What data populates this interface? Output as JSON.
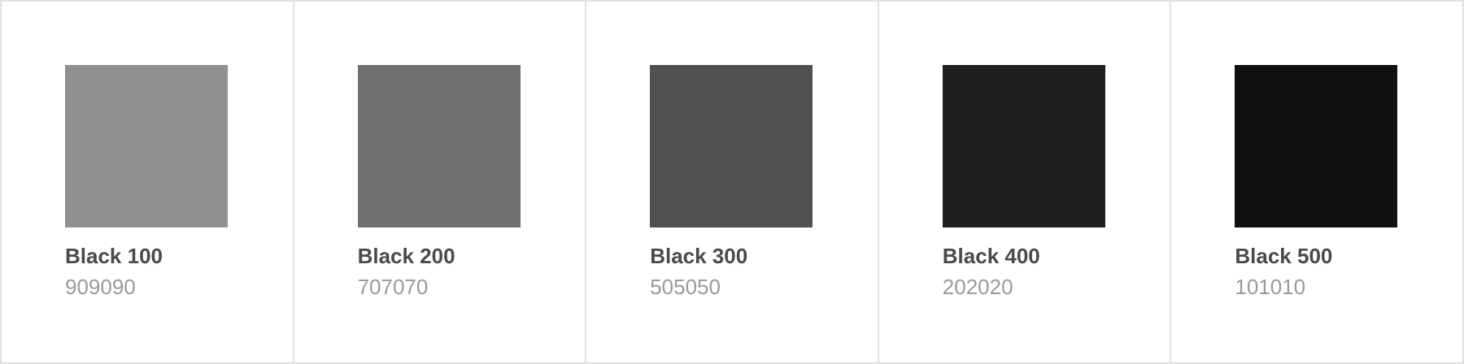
{
  "swatches": [
    {
      "name": "Black 100",
      "code": "909090",
      "color": "#909090"
    },
    {
      "name": "Black 200",
      "code": "707070",
      "color": "#707070"
    },
    {
      "name": "Black 300",
      "code": "505050",
      "color": "#505050"
    },
    {
      "name": "Black 400",
      "code": "202020",
      "color": "#202020"
    },
    {
      "name": "Black 500",
      "code": "101010",
      "color": "#101010"
    }
  ]
}
